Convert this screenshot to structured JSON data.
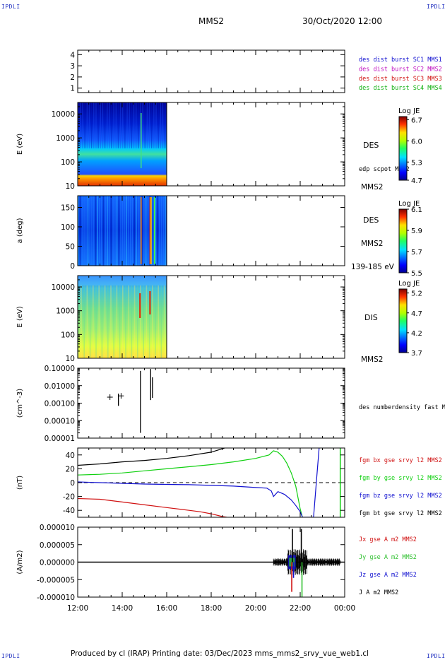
{
  "corner_label": "IPDLI",
  "header": {
    "spacecraft": "MMS2",
    "datetime": "30/Oct/2020 12:00"
  },
  "footer": {
    "text": "Produced by cl (IRAP)   Printing date: 03/Dec/2023   mms_mms2_srvy_vue_web1.cl"
  },
  "chart_data": [
    {
      "type": "table",
      "ylabel": "",
      "yticks": [
        "1",
        "2",
        "3",
        "4"
      ],
      "ylim": [
        0.6,
        4.4
      ],
      "legend": [
        {
          "label": "des dist burst SC1 MMS1",
          "color": "#1010d0"
        },
        {
          "label": "des dist burst SC2 MMS2",
          "color": "#c010c0"
        },
        {
          "label": "des dist burst SC3 MMS3",
          "color": "#d01010"
        },
        {
          "label": "des dist burst SC4 MMS4",
          "color": "#10b010"
        }
      ]
    },
    {
      "type": "heatmap",
      "ylabel": "E (eV)",
      "yticks": [
        "10",
        "100",
        "1000",
        "10000"
      ],
      "ylim": [
        10,
        30000
      ],
      "y_scale": "log",
      "data_extent": [
        "12:00",
        "16:00"
      ],
      "instrument": "DES",
      "overlay_label": "edp scpot MMS2",
      "spacecraft": "MMS2",
      "colorbar": {
        "title": "Log JE",
        "ticks": [
          "6.7",
          "6.0",
          "5.3",
          "4.7"
        ],
        "range": [
          4.7,
          6.8
        ]
      }
    },
    {
      "type": "heatmap",
      "ylabel": "a (deg)",
      "yticks": [
        "0",
        "50",
        "100",
        "150"
      ],
      "ylim": [
        0,
        180
      ],
      "data_extent": [
        "12:00",
        "16:00"
      ],
      "instrument": "DES",
      "spacecraft": "MMS2",
      "energy_range": "139-185 eV",
      "colorbar": {
        "title": "Log JE",
        "ticks": [
          "6.1",
          "5.9",
          "5.7",
          "5.5"
        ],
        "range": [
          5.5,
          6.1
        ]
      }
    },
    {
      "type": "heatmap",
      "ylabel": "E (eV)",
      "yticks": [
        "10",
        "100",
        "1000",
        "10000"
      ],
      "ylim": [
        10,
        30000
      ],
      "y_scale": "log",
      "data_extent": [
        "12:00",
        "16:00"
      ],
      "instrument": "DIS",
      "spacecraft": "MMS2",
      "colorbar": {
        "title": "Log JE",
        "ticks": [
          "5.2",
          "4.7",
          "4.2",
          "3.7"
        ],
        "range": [
          3.7,
          5.3
        ]
      }
    },
    {
      "type": "scatter",
      "ylabel": "(cm^-3)",
      "yticks": [
        "0.00001",
        "0.00010",
        "0.00100",
        "0.01000",
        "0.10000"
      ],
      "ylim": [
        1e-05,
        0.1
      ],
      "y_scale": "log",
      "legend": [
        {
          "label": "des numberdensity fast M",
          "color": "#000000"
        }
      ],
      "points": [
        {
          "x": 13.45,
          "y": 0.0022
        },
        {
          "x": 13.95,
          "y": 0.0026
        }
      ],
      "spikes": [
        {
          "x": 13.83,
          "y0": 0.0007,
          "y1": 0.0035
        },
        {
          "x": 14.82,
          "y0": 2e-05,
          "y1": 0.07
        },
        {
          "x": 15.28,
          "y0": 0.0015,
          "y1": 0.09
        },
        {
          "x": 15.36,
          "y0": 0.002,
          "y1": 0.03
        }
      ]
    },
    {
      "type": "line",
      "ylabel": "(nT)",
      "yticks": [
        "-40",
        "-20",
        "0",
        "20",
        "40"
      ],
      "ylim": [
        -50,
        50
      ],
      "zero_line": true,
      "series": [
        {
          "name": "fgm bt gse srvy l2 MMS2",
          "color": "#000000",
          "x": [
            12.0,
            13.0,
            14.0,
            15.0,
            16.0,
            17.0,
            18.0,
            18.6
          ],
          "y": [
            25,
            27,
            30,
            32,
            35,
            39,
            44,
            50
          ]
        },
        {
          "name": "fgm by gse srvy l2 MMS2",
          "color": "#10d010",
          "x": [
            12.0,
            13.0,
            14.0,
            15.0,
            16.0,
            17.0,
            18.0,
            19.0,
            20.0,
            20.6,
            20.8,
            21.0,
            21.2,
            21.4,
            21.6,
            21.8,
            22.0,
            22.1
          ],
          "y": [
            11,
            12,
            14,
            17,
            20,
            23,
            26,
            30,
            35,
            40,
            46,
            44,
            38,
            28,
            14,
            -5,
            -38,
            -50
          ]
        },
        {
          "name": "fgm bz gse srvy l2 MMS2",
          "color": "#1010d0",
          "x": [
            12.0,
            13.0,
            14.0,
            15.0,
            16.0,
            17.0,
            18.0,
            19.0,
            20.0,
            20.5,
            20.7,
            20.8,
            21.0,
            21.3,
            21.6,
            21.8,
            22.0,
            22.1,
            22.6,
            22.75,
            22.85
          ],
          "y": [
            1,
            0,
            -1,
            -2,
            -2.5,
            -3,
            -4,
            -5,
            -7,
            -8,
            -12,
            -20,
            -13,
            -17,
            -25,
            -33,
            -42,
            -50,
            -50,
            10,
            50
          ]
        },
        {
          "name": "fgm bx gse srvy l2 MMS2",
          "color": "#d01010",
          "x": [
            12.0,
            13.0,
            14.0,
            15.0,
            16.0,
            17.0,
            17.5,
            18.0,
            18.5,
            18.7
          ],
          "y": [
            -23,
            -24,
            -28,
            -32,
            -36,
            -40,
            -42,
            -45,
            -49,
            -50
          ]
        }
      ],
      "tail_spike": {
        "x": 23.8,
        "color": "#10d010"
      }
    },
    {
      "type": "line",
      "ylabel": "(A/m2)",
      "yticks": [
        "-0.000010",
        "-0.000005",
        "0.000000",
        "0.000005",
        "0.000010"
      ],
      "ylim": [
        -1e-05,
        1e-05
      ],
      "series": [
        {
          "name": "Jx gse A m2 MMS2",
          "color": "#d01010"
        },
        {
          "name": "Jy gse A m2 MMS2",
          "color": "#30c030"
        },
        {
          "name": "Jz gse A m2 MMS2",
          "color": "#1010d0"
        },
        {
          "name": "J A m2 MMS2",
          "color": "#000000"
        }
      ],
      "spikes": [
        {
          "x": 21.65,
          "y": 9.5e-06,
          "color": "#000000"
        },
        {
          "x": 21.7,
          "y": -4.5e-06,
          "color": "#1010d0"
        },
        {
          "x": 21.62,
          "y": -8.5e-06,
          "color": "#d01010"
        },
        {
          "x": 22.05,
          "y": 9.5e-06,
          "color": "#000000"
        },
        {
          "x": 22.08,
          "y": -1e-05,
          "color": "#30c030"
        }
      ],
      "noise_after": 20.8,
      "xlabel_ticks": [
        "12:00",
        "14:00",
        "16:00",
        "18:00",
        "20:00",
        "22:00",
        "00:00"
      ],
      "x_range_hours": [
        12,
        24
      ]
    }
  ]
}
